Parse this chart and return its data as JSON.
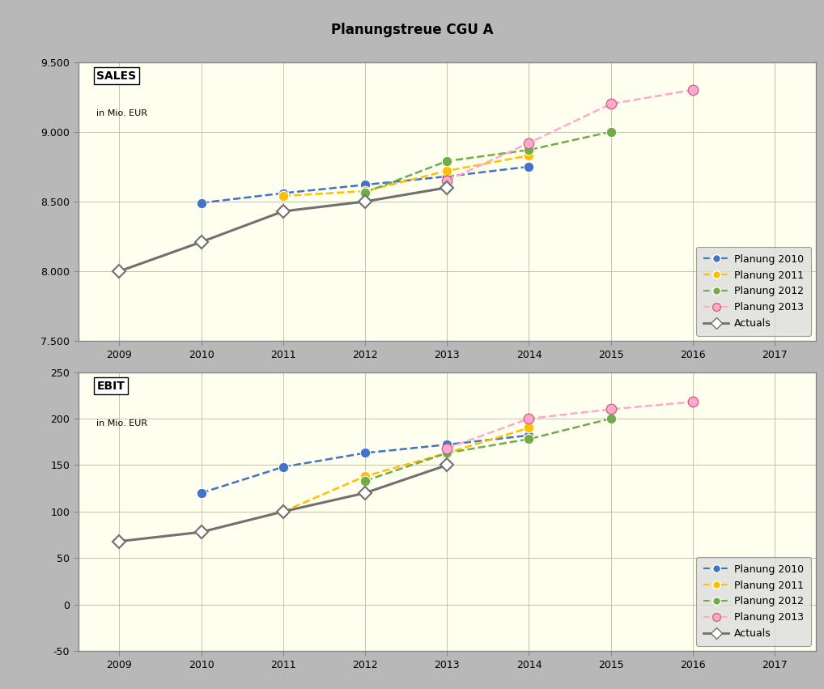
{
  "title": "Planungstreue CGU A",
  "title_bg": "#c8c8c8",
  "plot_bg": "#fffff0",
  "outer_bg": "#b8b8b8",
  "sales": {
    "ylim": [
      7500,
      9500
    ],
    "yticks": [
      7500,
      8000,
      8500,
      9000,
      9500
    ],
    "ytick_labels": [
      "7.500",
      "8.000",
      "8.500",
      "9.000",
      "9.500"
    ],
    "xlim": [
      2008.5,
      2017.5
    ],
    "xticks": [
      2009,
      2010,
      2011,
      2012,
      2013,
      2014,
      2015,
      2016,
      2017
    ],
    "planung2010": {
      "x": [
        2010,
        2011,
        2012,
        2013,
        2014
      ],
      "y": [
        8490,
        8560,
        8620,
        8680,
        8750
      ]
    },
    "planung2011": {
      "x": [
        2011,
        2012,
        2013,
        2014
      ],
      "y": [
        8540,
        8575,
        8720,
        8830
      ]
    },
    "planung2012": {
      "x": [
        2012,
        2013,
        2014,
        2015
      ],
      "y": [
        8565,
        8790,
        8870,
        9000
      ]
    },
    "planung2013": {
      "x": [
        2013,
        2014,
        2015,
        2016
      ],
      "y": [
        8650,
        8920,
        9200,
        9300
      ]
    },
    "actuals": {
      "x": [
        2009,
        2010,
        2011,
        2012,
        2013
      ],
      "y": [
        8000,
        8210,
        8430,
        8500,
        8600
      ]
    }
  },
  "ebit": {
    "ylim": [
      -50,
      250
    ],
    "yticks": [
      -50,
      0,
      50,
      100,
      150,
      200,
      250
    ],
    "ytick_labels": [
      "-50",
      "0",
      "50",
      "100",
      "150",
      "200",
      "250"
    ],
    "xlim": [
      2008.5,
      2017.5
    ],
    "xticks": [
      2009,
      2010,
      2011,
      2012,
      2013,
      2014,
      2015,
      2016,
      2017
    ],
    "planung2010": {
      "x": [
        2010,
        2011,
        2012,
        2013,
        2014
      ],
      "y": [
        120,
        148,
        163,
        172,
        182
      ]
    },
    "planung2011": {
      "x": [
        2011,
        2012,
        2013,
        2014
      ],
      "y": [
        100,
        138,
        163,
        190
      ]
    },
    "planung2012": {
      "x": [
        2012,
        2013,
        2014,
        2015
      ],
      "y": [
        133,
        163,
        178,
        200
      ]
    },
    "planung2013": {
      "x": [
        2013,
        2014,
        2015,
        2016
      ],
      "y": [
        168,
        200,
        210,
        218
      ]
    },
    "actuals": {
      "x": [
        2009,
        2010,
        2011,
        2012,
        2013
      ],
      "y": [
        68,
        78,
        100,
        120,
        150
      ]
    }
  },
  "color_p2010": "#4472c4",
  "color_p2011": "#ffc000",
  "color_p2012": "#70ad47",
  "color_p2013": "#ffaacc",
  "color_actuals": "#707070"
}
